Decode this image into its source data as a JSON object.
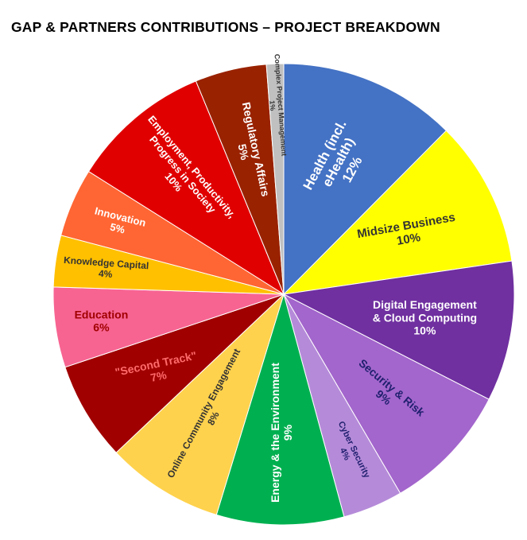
{
  "chart_data": {
    "type": "pie",
    "title": "GAP & PARTNERS CONTRIBUTIONS – PROJECT BREAKDOWN",
    "unit": "%",
    "slices": [
      {
        "label": [
          "Health (incl.",
          "eHealth)"
        ],
        "value_label": "12%",
        "value": 12.4,
        "color": "#4472C4",
        "text_color": "#ffffff",
        "label_rot": -62
      },
      {
        "label": [
          "Midsize Business"
        ],
        "value_label": "10%",
        "value": 10.2,
        "color": "#FFFF00",
        "text_color": "#333333",
        "label_rot": -10
      },
      {
        "label": [
          "Digital Engagement",
          "& Cloud Computing"
        ],
        "value_label": "10%",
        "value": 9.8,
        "color": "#7030A0",
        "text_color": "#ffffff",
        "label_rot": 0
      },
      {
        "label": [
          "Security & Risk"
        ],
        "value_label": "9%",
        "value": 9.0,
        "color": "#A366CC",
        "text_color": "#1F1F6E",
        "label_rot": 40
      },
      {
        "label": [
          "Cyber Security"
        ],
        "value_label": "4%",
        "value": 4.2,
        "color": "#B58BD9",
        "text_color": "#1F1F6E",
        "label_rot": 64
      },
      {
        "label": [
          "Energy & the Environment"
        ],
        "value_label": "9%",
        "value": 8.9,
        "color": "#00B050",
        "text_color": "#ffffff",
        "label_rot": -90
      },
      {
        "label": [
          "Online Community Engagement"
        ],
        "value_label": "8%",
        "value": 8.2,
        "color": "#FFD24D",
        "text_color": "#333333",
        "label_rot": -62
      },
      {
        "label": [
          "\"Second Track\""
        ],
        "value_label": "7%",
        "value": 6.9,
        "color": "#A00000",
        "text_color": "#FF6B6B",
        "label_rot": -12
      },
      {
        "label": [
          "Education"
        ],
        "value_label": "6%",
        "value": 5.6,
        "color": "#F76492",
        "text_color": "#A00000",
        "label_rot": 0
      },
      {
        "label": [
          "Knowledge Capital"
        ],
        "value_label": "4%",
        "value": 3.6,
        "color": "#FFC000",
        "text_color": "#333333",
        "label_rot": 4
      },
      {
        "label": [
          "Innovation"
        ],
        "value_label": "5%",
        "value": 4.8,
        "color": "#FF6633",
        "text_color": "#ffffff",
        "label_rot": 14
      },
      {
        "label": [
          "Employment, Productivity,",
          "Progress in Society"
        ],
        "value_label": "10%",
        "value": 9.8,
        "color": "#E00000",
        "text_color": "#ffffff",
        "label_rot": 50
      },
      {
        "label": [
          "Regulatory Affairs"
        ],
        "value_label": "5%",
        "value": 5.0,
        "color": "#992200",
        "text_color": "#ffffff",
        "label_rot": 78
      },
      {
        "label": [
          "Complex Project Management"
        ],
        "value_label": "1%",
        "value": 1.2,
        "color": "#C0C0C0",
        "text_color": "#333333",
        "label_rot": 86
      }
    ]
  }
}
